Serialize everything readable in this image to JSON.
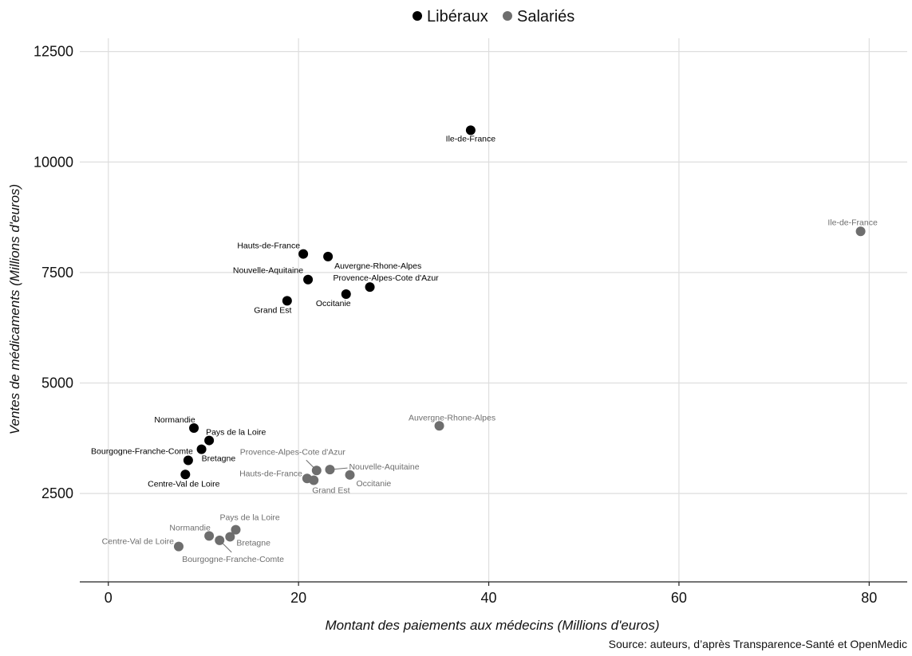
{
  "chart_data": {
    "type": "scatter",
    "xlabel": "Montant des paiements aux médecins (Millions d'euros)",
    "ylabel": "Ventes de médicaments (Millions d'euros)",
    "source": "Source: auteurs, d’après Transparence-Santé et OpenMedic",
    "xlim": [
      -3,
      84
    ],
    "ylim": [
      500,
      12800
    ],
    "xticks": [
      0,
      20,
      40,
      60,
      80
    ],
    "yticks": [
      2500,
      5000,
      7500,
      10000,
      12500
    ],
    "grid": true,
    "legend_position": "top",
    "series": [
      {
        "name": "Libéraux",
        "color": "#000000",
        "points": [
          {
            "label": "Ile-de-France",
            "x": 38.1,
            "y": 10720
          },
          {
            "label": "Hauts-de-France",
            "x": 20.5,
            "y": 7920
          },
          {
            "label": "Auvergne-Rhone-Alpes",
            "x": 23.1,
            "y": 7860
          },
          {
            "label": "Nouvelle-Aquitaine",
            "x": 21.0,
            "y": 7340
          },
          {
            "label": "Provence-Alpes-Cote d'Azur",
            "x": 27.5,
            "y": 7170
          },
          {
            "label": "Occitanie",
            "x": 25.0,
            "y": 7010
          },
          {
            "label": "Grand Est",
            "x": 18.8,
            "y": 6860
          },
          {
            "label": "Normandie",
            "x": 9.0,
            "y": 3980
          },
          {
            "label": "Pays de la Loire",
            "x": 10.6,
            "y": 3700
          },
          {
            "label": "Bretagne",
            "x": 9.8,
            "y": 3500
          },
          {
            "label": "Bourgogne-Franche-Comte",
            "x": 8.4,
            "y": 3250
          },
          {
            "label": "Centre-Val de Loire",
            "x": 8.1,
            "y": 2930
          }
        ]
      },
      {
        "name": "Salariés",
        "color": "#6e6e6e",
        "points": [
          {
            "label": "Ile-de-France",
            "x": 79.1,
            "y": 8430
          },
          {
            "label": "Auvergne-Rhone-Alpes",
            "x": 34.8,
            "y": 4030
          },
          {
            "label": "Provence-Alpes-Cote d'Azur",
            "x": 21.9,
            "y": 3020
          },
          {
            "label": "Nouvelle-Aquitaine",
            "x": 23.3,
            "y": 3040
          },
          {
            "label": "Occitanie",
            "x": 25.4,
            "y": 2920
          },
          {
            "label": "Hauts-de-France",
            "x": 20.9,
            "y": 2840
          },
          {
            "label": "Grand Est",
            "x": 21.6,
            "y": 2800
          },
          {
            "label": "Pays de la Loire",
            "x": 13.4,
            "y": 1680
          },
          {
            "label": "Normandie",
            "x": 10.6,
            "y": 1540
          },
          {
            "label": "Bretagne",
            "x": 12.8,
            "y": 1520
          },
          {
            "label": "Bourgogne-Franche-Comte",
            "x": 11.7,
            "y": 1440
          },
          {
            "label": "Centre-Val de Loire",
            "x": 7.4,
            "y": 1300
          }
        ]
      }
    ]
  }
}
